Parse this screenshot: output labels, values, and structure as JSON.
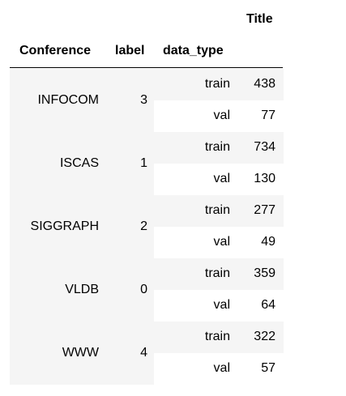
{
  "table": {
    "headers": {
      "title": "Title",
      "conference": "Conference",
      "label": "label",
      "data_type": "data_type"
    },
    "groups": [
      {
        "conference": "INFOCOM",
        "label": "3",
        "rows": [
          {
            "data_type": "train",
            "title": "438"
          },
          {
            "data_type": "val",
            "title": "77"
          }
        ]
      },
      {
        "conference": "ISCAS",
        "label": "1",
        "rows": [
          {
            "data_type": "train",
            "title": "734"
          },
          {
            "data_type": "val",
            "title": "130"
          }
        ]
      },
      {
        "conference": "SIGGRAPH",
        "label": "2",
        "rows": [
          {
            "data_type": "train",
            "title": "277"
          },
          {
            "data_type": "val",
            "title": "49"
          }
        ]
      },
      {
        "conference": "VLDB",
        "label": "0",
        "rows": [
          {
            "data_type": "train",
            "title": "359"
          },
          {
            "data_type": "val",
            "title": "64"
          }
        ]
      },
      {
        "conference": "WWW",
        "label": "4",
        "rows": [
          {
            "data_type": "train",
            "title": "322"
          },
          {
            "data_type": "val",
            "title": "57"
          }
        ]
      }
    ]
  }
}
